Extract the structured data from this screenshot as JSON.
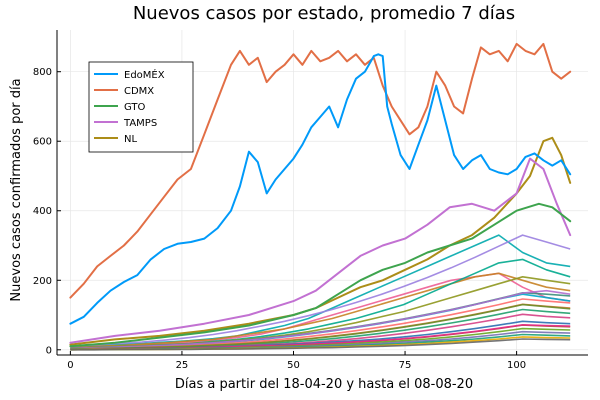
{
  "chart_data": {
    "type": "line",
    "title": "Nuevos casos por estado, promedio 7 días",
    "xlabel": "Días a partir del 18-04-20 y hasta el 08-08-20",
    "ylabel": "Nuevos casos confirmados por día",
    "xlim": [
      -3,
      116
    ],
    "ylim": [
      -15,
      920
    ],
    "xticks": [
      0,
      25,
      50,
      75,
      100
    ],
    "yticks": [
      0,
      200,
      400,
      600,
      800
    ],
    "grid": true,
    "legend_position": "top-left",
    "series": [
      {
        "name": "EdoMÉX",
        "color": "#009AF9",
        "x": [
          0,
          3,
          6,
          9,
          12,
          15,
          18,
          21,
          24,
          27,
          30,
          33,
          36,
          38,
          40,
          42,
          44,
          46,
          48,
          50,
          52,
          54,
          56,
          58,
          60,
          62,
          64,
          66,
          68,
          69,
          70,
          71,
          72,
          74,
          76,
          78,
          80,
          82,
          84,
          86,
          88,
          90,
          92,
          94,
          96,
          98,
          100,
          102,
          104,
          106,
          108,
          110,
          112
        ],
        "y": [
          75,
          95,
          135,
          170,
          195,
          215,
          260,
          290,
          305,
          310,
          320,
          350,
          400,
          470,
          570,
          540,
          450,
          490,
          520,
          550,
          590,
          640,
          670,
          700,
          640,
          720,
          780,
          800,
          845,
          850,
          845,
          700,
          650,
          560,
          520,
          590,
          660,
          760,
          660,
          560,
          520,
          545,
          560,
          520,
          510,
          505,
          520,
          555,
          565,
          545,
          530,
          545,
          505
        ]
      },
      {
        "name": "CDMX",
        "color": "#E26F46",
        "x": [
          0,
          3,
          6,
          9,
          12,
          15,
          18,
          21,
          24,
          27,
          30,
          33,
          36,
          38,
          40,
          42,
          44,
          46,
          48,
          50,
          52,
          54,
          56,
          58,
          60,
          62,
          64,
          66,
          68,
          70,
          72,
          74,
          76,
          78,
          80,
          82,
          84,
          86,
          88,
          90,
          92,
          94,
          96,
          98,
          100,
          102,
          104,
          106,
          108,
          110,
          112
        ],
        "y": [
          150,
          190,
          240,
          270,
          300,
          340,
          390,
          440,
          490,
          520,
          620,
          720,
          820,
          860,
          820,
          840,
          770,
          800,
          820,
          850,
          820,
          860,
          830,
          840,
          860,
          830,
          850,
          820,
          840,
          760,
          700,
          660,
          620,
          640,
          700,
          800,
          760,
          700,
          680,
          780,
          870,
          850,
          860,
          830,
          880,
          860,
          850,
          880,
          800,
          780,
          800
        ]
      },
      {
        "name": "GTO",
        "color": "#3EA44E",
        "x": [
          0,
          10,
          20,
          30,
          40,
          50,
          55,
          60,
          65,
          70,
          75,
          80,
          85,
          90,
          95,
          100,
          105,
          108,
          110,
          112
        ],
        "y": [
          10,
          20,
          35,
          50,
          70,
          100,
          120,
          160,
          200,
          230,
          250,
          280,
          300,
          320,
          360,
          400,
          420,
          410,
          390,
          370
        ]
      },
      {
        "name": "TAMPS",
        "color": "#C271D2",
        "x": [
          0,
          10,
          20,
          30,
          40,
          50,
          55,
          60,
          65,
          70,
          75,
          80,
          85,
          90,
          95,
          100,
          103,
          106,
          109,
          112
        ],
        "y": [
          20,
          40,
          55,
          75,
          100,
          140,
          170,
          220,
          270,
          300,
          320,
          360,
          410,
          420,
          400,
          450,
          550,
          520,
          420,
          330
        ]
      },
      {
        "name": "NL",
        "color": "#AC8D18",
        "x": [
          0,
          10,
          20,
          30,
          40,
          50,
          55,
          60,
          65,
          70,
          75,
          80,
          85,
          90,
          95,
          100,
          103,
          106,
          108,
          110,
          112
        ],
        "y": [
          15,
          30,
          40,
          55,
          75,
          100,
          120,
          150,
          180,
          200,
          230,
          260,
          300,
          330,
          380,
          450,
          500,
          600,
          610,
          560,
          480
        ]
      }
    ],
    "background_series": [
      {
        "color": "#00A9AD",
        "y": [
          10,
          12,
          15,
          18,
          22,
          26,
          32,
          40,
          55,
          70,
          90,
          120,
          150,
          180,
          210,
          240,
          270,
          300,
          330,
          280,
          250,
          240
        ]
      },
      {
        "color": "#ED5E93",
        "y": [
          5,
          8,
          10,
          14,
          18,
          22,
          28,
          35,
          45,
          60,
          80,
          100,
          120,
          140,
          160,
          180,
          200,
          210,
          220,
          180,
          150,
          140
        ]
      },
      {
        "color": "#C68225",
        "y": [
          8,
          10,
          12,
          16,
          20,
          25,
          30,
          40,
          50,
          60,
          75,
          90,
          110,
          130,
          150,
          170,
          190,
          210,
          220,
          200,
          180,
          170
        ]
      },
      {
        "color": "#00A98D",
        "y": [
          4,
          6,
          8,
          10,
          14,
          18,
          24,
          30,
          38,
          48,
          60,
          75,
          90,
          110,
          130,
          160,
          190,
          220,
          250,
          260,
          230,
          210
        ]
      },
      {
        "color": "#8E971D",
        "y": [
          6,
          8,
          10,
          12,
          15,
          18,
          22,
          28,
          34,
          42,
          52,
          64,
          78,
          94,
          110,
          130,
          150,
          170,
          190,
          210,
          200,
          190
        ]
      },
      {
        "color": "#00A8CB",
        "y": [
          3,
          5,
          7,
          9,
          12,
          15,
          19,
          24,
          30,
          37,
          45,
          54,
          64,
          75,
          87,
          100,
          114,
          130,
          146,
          160,
          150,
          140
        ]
      },
      {
        "color": "#9A7FE0",
        "y": [
          10,
          14,
          18,
          22,
          28,
          35,
          44,
          55,
          68,
          82,
          98,
          116,
          136,
          158,
          182,
          208,
          236,
          266,
          298,
          330,
          310,
          290
        ]
      },
      {
        "color": "#FF6B6B",
        "y": [
          2,
          4,
          6,
          8,
          10,
          13,
          16,
          20,
          25,
          31,
          38,
          46,
          55,
          65,
          76,
          88,
          101,
          115,
          130,
          146,
          140,
          135
        ]
      },
      {
        "color": "#3C8D7C",
        "y": [
          5,
          7,
          9,
          11,
          14,
          17,
          21,
          26,
          32,
          39,
          47,
          56,
          66,
          77,
          89,
          102,
          116,
          131,
          147,
          164,
          160,
          155
        ]
      },
      {
        "color": "#B16DCE",
        "y": [
          4,
          6,
          8,
          10,
          13,
          16,
          20,
          25,
          31,
          38,
          46,
          55,
          65,
          76,
          88,
          101,
          115,
          130,
          146,
          163,
          170,
          160
        ]
      },
      {
        "color": "#DA7430",
        "y": [
          3,
          4,
          5,
          7,
          9,
          11,
          14,
          17,
          21,
          26,
          32,
          39,
          47,
          56,
          66,
          77,
          89,
          102,
          116,
          131,
          125,
          120
        ]
      },
      {
        "color": "#1F9E6B",
        "y": [
          2,
          3,
          4,
          5,
          7,
          9,
          11,
          14,
          17,
          21,
          26,
          32,
          39,
          47,
          56,
          66,
          77,
          89,
          102,
          116,
          110,
          105
        ]
      },
      {
        "color": "#D54085",
        "y": [
          1,
          2,
          3,
          4,
          5,
          7,
          9,
          11,
          14,
          17,
          21,
          26,
          32,
          39,
          47,
          56,
          66,
          77,
          89,
          102,
          96,
          92
        ]
      },
      {
        "color": "#6A8E2B",
        "y": [
          2,
          3,
          4,
          6,
          8,
          10,
          13,
          16,
          20,
          25,
          31,
          38,
          46,
          55,
          65,
          76,
          88,
          101,
          115,
          130,
          124,
          118
        ]
      },
      {
        "color": "#2A6FB0",
        "y": [
          1,
          2,
          3,
          4,
          5,
          6,
          8,
          10,
          12,
          15,
          18,
          22,
          26,
          31,
          37,
          44,
          52,
          61,
          71,
          82,
          78,
          75
        ]
      },
      {
        "color": "#A65628",
        "y": [
          1,
          1,
          2,
          3,
          4,
          5,
          6,
          8,
          10,
          12,
          15,
          18,
          22,
          26,
          31,
          37,
          44,
          52,
          61,
          71,
          68,
          66
        ]
      },
      {
        "color": "#E7298A",
        "y": [
          1,
          2,
          2,
          3,
          4,
          5,
          7,
          9,
          11,
          13,
          16,
          19,
          23,
          27,
          32,
          38,
          45,
          53,
          62,
          72,
          70,
          68
        ]
      },
      {
        "color": "#66A61E",
        "y": [
          1,
          1,
          2,
          2,
          3,
          4,
          5,
          6,
          8,
          10,
          12,
          15,
          18,
          22,
          26,
          31,
          37,
          44,
          52,
          61,
          59,
          57
        ]
      },
      {
        "color": "#7570B3",
        "y": [
          1,
          1,
          1,
          2,
          2,
          3,
          4,
          5,
          6,
          8,
          10,
          12,
          15,
          18,
          22,
          26,
          31,
          37,
          44,
          52,
          50,
          48
        ]
      },
      {
        "color": "#1B9E77",
        "y": [
          0,
          1,
          1,
          1,
          2,
          2,
          3,
          4,
          5,
          6,
          8,
          10,
          12,
          15,
          18,
          22,
          26,
          31,
          37,
          44,
          42,
          40
        ]
      },
      {
        "color": "#E6AB02",
        "y": [
          0,
          1,
          1,
          1,
          1,
          2,
          2,
          3,
          4,
          5,
          6,
          8,
          10,
          12,
          15,
          18,
          22,
          26,
          31,
          37,
          35,
          34
        ]
      },
      {
        "color": "#666666",
        "y": [
          0,
          0,
          1,
          1,
          1,
          1,
          2,
          2,
          3,
          4,
          5,
          6,
          8,
          10,
          12,
          15,
          18,
          22,
          26,
          31,
          30,
          29
        ]
      }
    ]
  }
}
